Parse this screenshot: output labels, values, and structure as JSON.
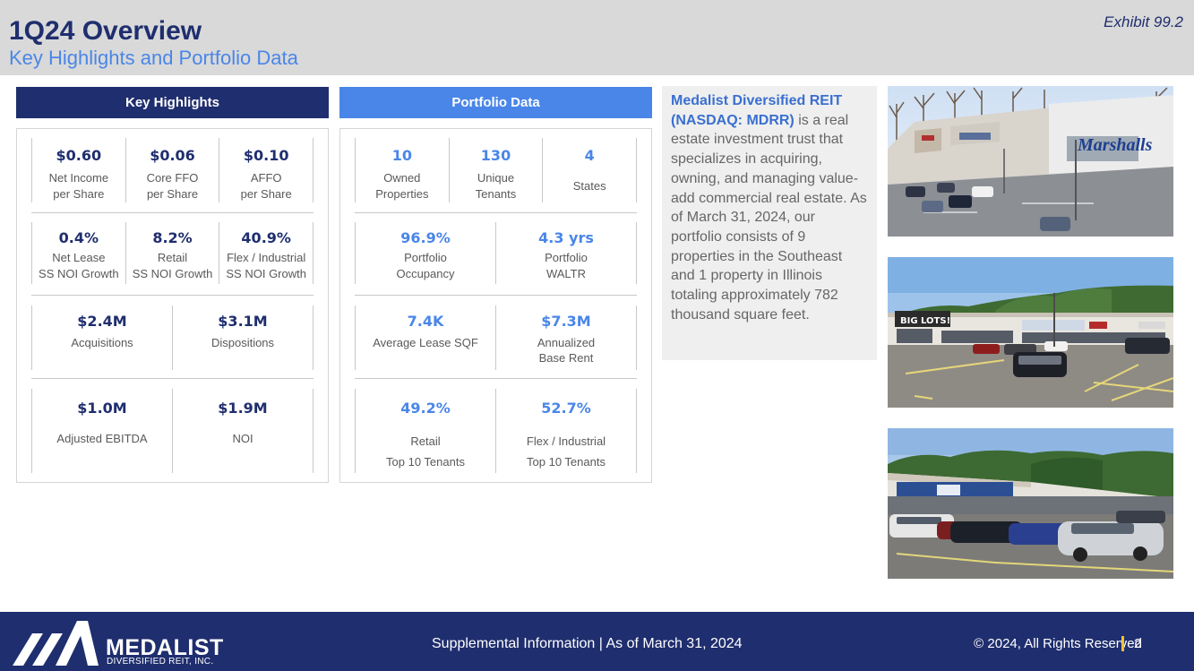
{
  "header": {
    "title": "1Q24 Overview",
    "subtitle": "Key Highlights and Portfolio Data",
    "exhibit": "Exhibit 99.2"
  },
  "key_highlights": {
    "heading": "Key Highlights",
    "rows": [
      [
        {
          "value": "$0.60",
          "label1": "Net Income",
          "label2": "per Share"
        },
        {
          "value": "$0.06",
          "label1": "Core FFO",
          "label2": "per Share"
        },
        {
          "value": "$0.10",
          "label1": "AFFO",
          "label2": "per Share"
        }
      ],
      [
        {
          "value": "0.4%",
          "label1": "Net Lease",
          "label2": "SS NOI Growth"
        },
        {
          "value": "8.2%",
          "label1": "Retail",
          "label2": "SS NOI Growth"
        },
        {
          "value": "40.9%",
          "label1": "Flex / Industrial",
          "label2": "SS NOI Growth"
        }
      ],
      [
        {
          "value": "$2.4M",
          "label1": "Acquisitions"
        },
        {
          "value": "$3.1M",
          "label1": "Dispositions"
        }
      ],
      [
        {
          "value": "$1.0M",
          "label1": "Adjusted EBITDA"
        },
        {
          "value": "$1.9M",
          "label1": "NOI"
        }
      ]
    ]
  },
  "portfolio_data": {
    "heading": "Portfolio Data",
    "rows": [
      [
        {
          "value": "10",
          "label1": "Owned",
          "label2": "Properties"
        },
        {
          "value": "130",
          "label1": "Unique",
          "label2": "Tenants"
        },
        {
          "value": "4",
          "label1": "States"
        }
      ],
      [
        {
          "value": "96.9%",
          "label1": "Portfolio",
          "label2": "Occupancy"
        },
        {
          "value": "4.3 yrs",
          "label1": "Portfolio",
          "label2": "WALTR"
        }
      ],
      [
        {
          "value": "7.4K",
          "label1": "Average Lease SQF"
        },
        {
          "value": "$7.3M",
          "label1": "Annualized",
          "label2": "Base Rent"
        }
      ],
      [
        {
          "value": "49.2%",
          "label1": "Retail",
          "label2": "Top 10 Tenants"
        },
        {
          "value": "52.7%",
          "label1": "Flex / Industrial",
          "label2": "Top 10 Tenants"
        }
      ]
    ]
  },
  "description": {
    "company": "Medalist Diversified REIT (NASDAQ: MDRR)",
    "body": " is a real estate investment trust that specializes in acquiring, owning, and managing value-add commercial real estate. As of March 31, 2024, our portfolio consists of 9 properties in the Southeast and 1 property in Illinois totaling approximately 782 thousand square feet."
  },
  "photos": {
    "photo1_sign": "Marshalls",
    "photo2_sign": "BIG LOTS!"
  },
  "footer": {
    "logo_name": "MEDALIST",
    "logo_sub": "DIVERSIFIED REIT, INC.",
    "center_text": "Supplemental Information | As of March 31, 2024",
    "copyright": "© 2024, All Rights Reserved",
    "page": "2"
  },
  "colors": {
    "navy": "#1f2e6e",
    "blue": "#4a86e8",
    "gold": "#f1c232"
  }
}
